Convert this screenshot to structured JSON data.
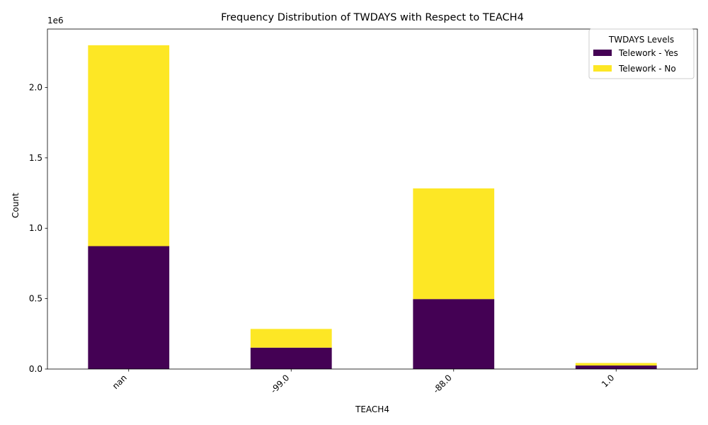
{
  "chart_data": {
    "type": "bar",
    "stacked": true,
    "title": "Frequency Distribution of TWDAYS with Respect to TEACH4",
    "xlabel": "TEACH4",
    "ylabel": "Count",
    "scale_label": "1e6",
    "categories": [
      "nan",
      "-99.0",
      "-88.0",
      "1.0"
    ],
    "series": [
      {
        "name": "Telework - Yes",
        "color": "#440154",
        "values": [
          873000,
          152000,
          497000,
          25000
        ]
      },
      {
        "name": "Telework - No",
        "color": "#fde725",
        "values": [
          1427000,
          133000,
          786000,
          18000
        ]
      }
    ],
    "ylim": [
      0,
      2415000
    ],
    "yticks": [
      0,
      500000,
      1000000,
      1500000,
      2000000
    ],
    "ytick_labels": [
      "0.0",
      "0.5",
      "1.0",
      "1.5",
      "2.0"
    ],
    "legend": {
      "title": "TWDAYS Levels",
      "position": "top-right"
    },
    "grid": false
  }
}
